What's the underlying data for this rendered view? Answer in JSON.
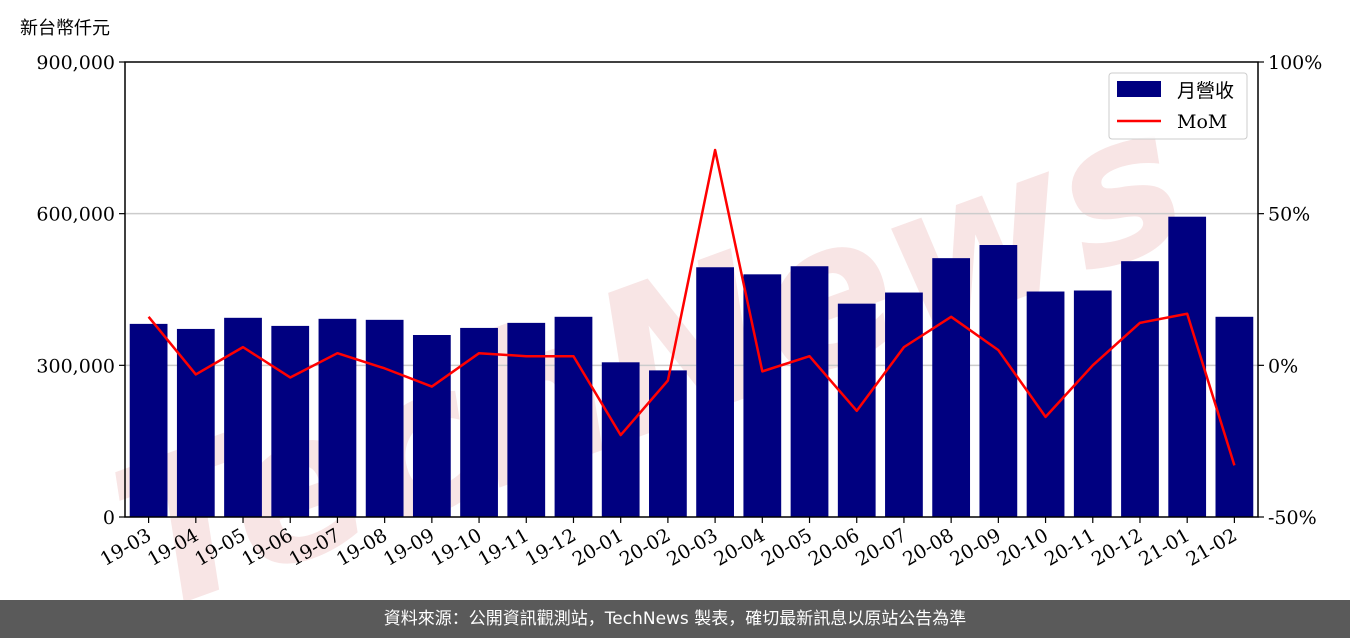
{
  "unit_label": "新台幣仟元",
  "watermark": "TechNews",
  "footer_text": "資料來源：公開資訊觀測站，TechNews 製表，確切最新訊息以原站公告為準",
  "chart_data": {
    "type": "bar",
    "categories": [
      "19-03",
      "19-04",
      "19-05",
      "19-06",
      "19-07",
      "19-08",
      "19-09",
      "19-10",
      "19-11",
      "19-12",
      "20-01",
      "20-02",
      "20-03",
      "20-04",
      "20-05",
      "20-06",
      "20-07",
      "20-08",
      "20-09",
      "20-10",
      "20-11",
      "20-12",
      "21-01",
      "21-02"
    ],
    "series": [
      {
        "name": "月營收",
        "type": "bar",
        "axis": "left",
        "color": "#000080",
        "values": [
          382000,
          372000,
          394000,
          378000,
          392000,
          390000,
          360000,
          374000,
          384000,
          396000,
          306000,
          290000,
          494000,
          480000,
          496000,
          422000,
          444000,
          512000,
          538000,
          446000,
          448000,
          506000,
          594000,
          396000
        ]
      },
      {
        "name": "MoM",
        "type": "line",
        "axis": "right",
        "color": "#ff0000",
        "values": [
          16,
          -3,
          6,
          -4,
          4,
          -1,
          -7,
          4,
          3,
          3,
          -23,
          -5,
          71,
          -2,
          3,
          -15,
          6,
          16,
          5,
          -17,
          0,
          14,
          17,
          -33
        ]
      }
    ],
    "ylim_left": [
      0,
      900000
    ],
    "yticks_left": [
      "0",
      "300,000",
      "600,000",
      "900,000"
    ],
    "ylim_right": [
      -50,
      100
    ],
    "yticks_right": [
      "-50%",
      "0%",
      "50%",
      "100%"
    ],
    "grid": "horizontal",
    "legend": "top-right"
  }
}
